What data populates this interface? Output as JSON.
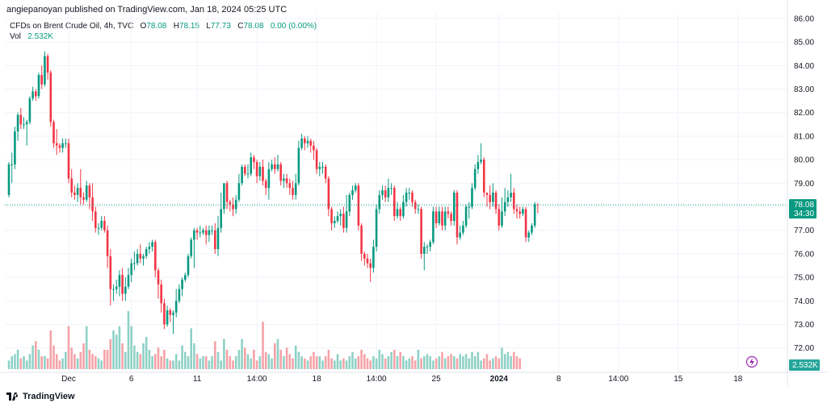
{
  "header": {
    "published": "angiepanoyan published on TradingView.com, Jan 18, 2024 05:25 UTC"
  },
  "legend": {
    "symbol": "CFDs on Brent Crude Oil, 4h, TVC",
    "o_label": "O",
    "o": "78.08",
    "h_label": "H",
    "h": "78.15",
    "l_label": "L",
    "l": "77.73",
    "c_label": "C",
    "c": "78.08",
    "change": "0.00 (0.00%)",
    "vol_label": "Vol",
    "vol": "2.532K"
  },
  "price_badge": {
    "price": "78.08",
    "countdown": "34:30",
    "color": "#089981"
  },
  "volume_badge": {
    "value": "2.532K",
    "color": "#26a69a"
  },
  "brand": {
    "name": "TradingView"
  },
  "colors": {
    "up": "#089981",
    "down": "#f23645",
    "vol_up": "#8fd1c6",
    "vol_down": "#f5a3a8",
    "grid": "#f0f3fa"
  },
  "chart_data": {
    "type": "candlestick",
    "y_ticks": [
      "72.00",
      "73.00",
      "74.00",
      "75.00",
      "76.00",
      "77.00",
      "78.00",
      "79.00",
      "80.00",
      "81.00",
      "82.00",
      "83.00",
      "84.00",
      "85.00",
      "86.00"
    ],
    "ylim": [
      71.1,
      86.1
    ],
    "x_ticks": [
      "Dec",
      "6",
      "11",
      "14:00",
      "18",
      "14:00",
      "25",
      "2024",
      "8",
      "14:00",
      "15",
      "18"
    ],
    "last_price": 78.08,
    "candles": [
      [
        78.5,
        79.8,
        78.4,
        79.9
      ],
      [
        79.8,
        79.8,
        79.0,
        80.3
      ],
      [
        79.8,
        81.2,
        79.6,
        81.4
      ],
      [
        81.2,
        81.9,
        80.8,
        82.0
      ],
      [
        81.9,
        81.5,
        81.3,
        82.2
      ],
      [
        81.5,
        81.5,
        81.3,
        81.8
      ],
      [
        81.5,
        81.6,
        80.6,
        81.7
      ],
      [
        81.6,
        82.6,
        81.5,
        82.7
      ],
      [
        82.6,
        82.9,
        82.5,
        83.1
      ],
      [
        82.9,
        82.7,
        82.5,
        83.0
      ],
      [
        82.7,
        83.6,
        82.6,
        83.7
      ],
      [
        83.6,
        83.2,
        83.0,
        84.0
      ],
      [
        83.2,
        84.4,
        83.1,
        84.6
      ],
      [
        84.4,
        83.7,
        83.4,
        84.5
      ],
      [
        83.7,
        81.6,
        81.4,
        83.8
      ],
      [
        81.6,
        80.7,
        80.5,
        81.7
      ],
      [
        80.7,
        80.6,
        80.2,
        81.3
      ],
      [
        80.6,
        80.5,
        80.3,
        80.7
      ],
      [
        80.5,
        80.7,
        80.3,
        80.9
      ],
      [
        80.7,
        80.7,
        80.5,
        80.9
      ],
      [
        80.7,
        79.2,
        79.0,
        80.9
      ],
      [
        79.2,
        78.6,
        78.4,
        79.6
      ],
      [
        78.6,
        78.5,
        78.3,
        78.9
      ],
      [
        78.5,
        78.8,
        78.2,
        79.0
      ],
      [
        78.8,
        78.4,
        78.1,
        79.6
      ],
      [
        78.4,
        78.3,
        78.1,
        78.6
      ],
      [
        78.3,
        78.9,
        78.2,
        79.1
      ],
      [
        78.9,
        78.4,
        77.9,
        79.0
      ],
      [
        78.4,
        77.8,
        77.4,
        79.0
      ],
      [
        77.8,
        77.1,
        76.9,
        78.0
      ],
      [
        77.1,
        77.1,
        76.8,
        77.3
      ],
      [
        77.1,
        77.4,
        77.0,
        77.6
      ],
      [
        77.4,
        77.0,
        76.9,
        77.6
      ],
      [
        77.0,
        75.9,
        75.4,
        77.2
      ],
      [
        75.9,
        74.5,
        73.8,
        76.2
      ],
      [
        74.5,
        74.5,
        74.0,
        74.7
      ],
      [
        74.5,
        74.6,
        74.3,
        74.9
      ],
      [
        74.6,
        75.1,
        74.2,
        75.3
      ],
      [
        75.1,
        74.3,
        74.0,
        75.4
      ],
      [
        74.3,
        74.6,
        74.0,
        75.0
      ],
      [
        74.6,
        75.1,
        74.5,
        75.4
      ],
      [
        75.1,
        75.6,
        74.8,
        75.8
      ],
      [
        75.6,
        75.6,
        75.3,
        76.1
      ],
      [
        75.6,
        76.0,
        75.5,
        76.2
      ],
      [
        76.0,
        75.8,
        75.6,
        76.4
      ],
      [
        75.8,
        75.9,
        75.5,
        76.0
      ],
      [
        75.9,
        76.2,
        75.8,
        76.3
      ],
      [
        76.2,
        76.3,
        76.0,
        76.5
      ],
      [
        76.3,
        76.5,
        76.1,
        76.6
      ],
      [
        76.5,
        75.3,
        75.0,
        76.6
      ],
      [
        75.3,
        74.7,
        74.1,
        75.4
      ],
      [
        74.7,
        73.9,
        73.5,
        74.9
      ],
      [
        73.9,
        73.0,
        72.8,
        74.1
      ],
      [
        73.0,
        73.6,
        72.9,
        73.8
      ],
      [
        73.6,
        73.4,
        73.1,
        73.7
      ],
      [
        73.4,
        73.5,
        72.6,
        73.6
      ],
      [
        73.5,
        74.0,
        73.3,
        74.5
      ],
      [
        74.0,
        74.5,
        73.9,
        74.7
      ],
      [
        74.5,
        74.9,
        74.2,
        75.0
      ],
      [
        74.9,
        75.1,
        74.8,
        75.2
      ],
      [
        75.1,
        75.9,
        75.0,
        76.0
      ],
      [
        75.9,
        76.6,
        75.8,
        76.7
      ],
      [
        76.6,
        77.0,
        75.4,
        77.1
      ],
      [
        77.0,
        76.9,
        76.6,
        77.1
      ],
      [
        76.9,
        76.9,
        76.7,
        77.2
      ],
      [
        76.9,
        77.0,
        76.8,
        77.1
      ],
      [
        77.0,
        76.8,
        76.4,
        77.2
      ],
      [
        76.8,
        77.0,
        76.5,
        77.2
      ],
      [
        77.0,
        77.0,
        76.8,
        77.2
      ],
      [
        77.0,
        76.2,
        76.0,
        77.3
      ],
      [
        76.2,
        77.1,
        75.9,
        77.6
      ],
      [
        77.1,
        77.9,
        76.9,
        78.6
      ],
      [
        77.9,
        79.0,
        77.7,
        79.0
      ],
      [
        79.0,
        78.2,
        77.9,
        79.1
      ],
      [
        78.2,
        78.1,
        77.8,
        78.3
      ],
      [
        78.1,
        77.9,
        77.6,
        78.4
      ],
      [
        77.9,
        78.3,
        77.7,
        78.5
      ],
      [
        78.3,
        79.0,
        78.2,
        79.4
      ],
      [
        79.0,
        79.7,
        78.9,
        79.8
      ],
      [
        79.7,
        79.4,
        79.3,
        79.8
      ],
      [
        79.4,
        79.4,
        79.2,
        79.8
      ],
      [
        79.4,
        80.1,
        79.3,
        80.3
      ],
      [
        80.1,
        79.9,
        79.6,
        80.2
      ],
      [
        79.9,
        79.3,
        79.0,
        80.0
      ],
      [
        79.3,
        79.7,
        79.1,
        79.9
      ],
      [
        79.7,
        79.1,
        78.9,
        80.0
      ],
      [
        79.1,
        78.8,
        78.5,
        79.2
      ],
      [
        78.8,
        79.6,
        78.3,
        79.9
      ],
      [
        79.6,
        79.8,
        79.5,
        80.0
      ],
      [
        79.8,
        79.6,
        79.4,
        80.1
      ],
      [
        79.6,
        79.8,
        79.5,
        80.2
      ],
      [
        79.8,
        79.1,
        78.9,
        79.9
      ],
      [
        79.1,
        79.2,
        78.8,
        79.4
      ],
      [
        79.2,
        79.0,
        78.8,
        79.4
      ],
      [
        79.0,
        78.8,
        78.5,
        79.2
      ],
      [
        78.8,
        78.5,
        78.3,
        79.1
      ],
      [
        78.5,
        79.0,
        78.3,
        79.4
      ],
      [
        79.0,
        80.5,
        78.9,
        80.8
      ],
      [
        80.5,
        80.9,
        80.4,
        81.1
      ],
      [
        80.9,
        80.7,
        80.4,
        81.0
      ],
      [
        80.7,
        80.8,
        80.5,
        81.0
      ],
      [
        80.8,
        80.6,
        80.3,
        80.9
      ],
      [
        80.6,
        80.4,
        80.0,
        80.8
      ],
      [
        80.4,
        79.6,
        79.4,
        80.5
      ],
      [
        79.6,
        79.7,
        79.3,
        79.9
      ],
      [
        79.7,
        79.7,
        79.4,
        79.9
      ],
      [
        79.7,
        79.2,
        79.0,
        79.8
      ],
      [
        79.2,
        77.9,
        77.6,
        79.3
      ],
      [
        77.9,
        77.3,
        77.0,
        78.0
      ],
      [
        77.3,
        77.4,
        77.1,
        77.6
      ],
      [
        77.4,
        77.6,
        77.3,
        77.8
      ],
      [
        77.6,
        77.7,
        77.2,
        77.9
      ],
      [
        77.7,
        77.1,
        76.9,
        78.0
      ],
      [
        77.1,
        77.8,
        76.9,
        78.5
      ],
      [
        77.8,
        78.5,
        77.6,
        78.6
      ],
      [
        78.5,
        78.7,
        78.3,
        78.9
      ],
      [
        78.7,
        78.9,
        78.6,
        79.0
      ],
      [
        78.9,
        77.2,
        77.0,
        79.0
      ],
      [
        77.2,
        76.0,
        75.7,
        77.3
      ],
      [
        76.0,
        75.8,
        75.5,
        76.1
      ],
      [
        75.8,
        75.6,
        75.4,
        76.0
      ],
      [
        75.6,
        75.4,
        74.8,
        75.8
      ],
      [
        75.4,
        76.3,
        75.2,
        76.6
      ],
      [
        76.3,
        77.9,
        76.1,
        78.1
      ],
      [
        77.9,
        78.5,
        77.7,
        78.7
      ],
      [
        78.5,
        78.7,
        78.3,
        78.9
      ],
      [
        78.7,
        78.4,
        78.2,
        78.9
      ],
      [
        78.4,
        78.8,
        78.2,
        79.2
      ],
      [
        78.8,
        78.8,
        78.5,
        79.0
      ],
      [
        78.8,
        77.6,
        77.4,
        78.9
      ],
      [
        77.6,
        77.9,
        77.5,
        78.2
      ],
      [
        77.9,
        77.6,
        77.4,
        78.0
      ],
      [
        77.6,
        78.2,
        77.5,
        78.5
      ],
      [
        78.2,
        78.6,
        78.0,
        78.8
      ],
      [
        78.6,
        78.6,
        78.3,
        78.8
      ],
      [
        78.6,
        78.2,
        78.0,
        78.7
      ],
      [
        78.2,
        77.9,
        77.7,
        78.3
      ],
      [
        77.9,
        77.9,
        77.7,
        78.1
      ],
      [
        77.9,
        76.0,
        75.8,
        78.0
      ],
      [
        76.0,
        76.3,
        75.3,
        76.5
      ],
      [
        76.3,
        76.3,
        76.0,
        76.4
      ],
      [
        76.3,
        76.5,
        76.1,
        76.6
      ],
      [
        76.5,
        77.8,
        76.4,
        78.0
      ],
      [
        77.8,
        77.3,
        77.1,
        78.0
      ],
      [
        77.3,
        77.8,
        77.2,
        78.0
      ],
      [
        77.8,
        77.2,
        77.0,
        78.0
      ],
      [
        77.2,
        77.8,
        77.0,
        78.0
      ],
      [
        77.8,
        77.7,
        77.5,
        78.0
      ],
      [
        77.7,
        77.4,
        77.2,
        77.8
      ],
      [
        77.4,
        78.6,
        77.2,
        78.7
      ],
      [
        78.6,
        76.7,
        76.4,
        78.7
      ],
      [
        76.7,
        76.9,
        76.6,
        77.2
      ],
      [
        76.9,
        77.2,
        76.8,
        77.4
      ],
      [
        77.2,
        78.0,
        77.1,
        78.1
      ],
      [
        78.0,
        78.0,
        77.5,
        78.2
      ],
      [
        78.0,
        78.8,
        77.9,
        79.0
      ],
      [
        78.8,
        79.6,
        78.7,
        79.8
      ],
      [
        79.6,
        79.9,
        79.4,
        80.2
      ],
      [
        79.9,
        80.0,
        79.8,
        80.7
      ],
      [
        80.0,
        78.6,
        78.4,
        80.1
      ],
      [
        78.6,
        78.5,
        78.0,
        78.6
      ],
      [
        78.5,
        78.2,
        77.9,
        78.9
      ],
      [
        78.2,
        78.6,
        78.0,
        79.0
      ],
      [
        78.6,
        77.9,
        77.7,
        78.7
      ],
      [
        77.9,
        77.2,
        77.0,
        78.1
      ],
      [
        77.2,
        77.8,
        77.1,
        78.4
      ],
      [
        77.8,
        78.2,
        77.6,
        78.8
      ],
      [
        78.2,
        78.4,
        78.0,
        78.7
      ],
      [
        78.4,
        78.6,
        78.2,
        79.4
      ],
      [
        78.6,
        77.9,
        77.7,
        78.8
      ],
      [
        77.9,
        77.8,
        77.5,
        78.1
      ],
      [
        77.8,
        77.7,
        77.5,
        78.0
      ],
      [
        77.7,
        77.9,
        77.6,
        78.0
      ],
      [
        77.9,
        76.7,
        76.5,
        78.0
      ],
      [
        76.7,
        76.9,
        76.5,
        77.0
      ],
      [
        76.9,
        77.2,
        76.8,
        77.3
      ],
      [
        77.2,
        78.1,
        77.1,
        78.2
      ],
      [
        78.1,
        78.08,
        77.73,
        78.15
      ]
    ],
    "volumes": [
      0.2,
      0.3,
      0.35,
      0.45,
      0.25,
      0.3,
      0.2,
      0.35,
      0.55,
      0.65,
      0.45,
      0.3,
      0.3,
      0.25,
      0.9,
      0.55,
      0.35,
      0.2,
      0.25,
      0.4,
      1.0,
      0.5,
      0.35,
      0.25,
      0.4,
      0.6,
      1.0,
      0.45,
      0.35,
      0.3,
      0.25,
      0.2,
      0.45,
      0.45,
      0.7,
      0.9,
      0.8,
      1.0,
      0.6,
      0.4,
      1.35,
      1.0,
      0.55,
      0.4,
      0.35,
      0.6,
      0.75,
      0.45,
      0.3,
      0.35,
      0.5,
      0.3,
      0.45,
      0.25,
      0.2,
      0.2,
      0.35,
      0.2,
      0.55,
      0.4,
      0.3,
      0.95,
      0.6,
      0.35,
      0.25,
      0.3,
      0.3,
      0.2,
      0.3,
      0.65,
      0.4,
      0.2,
      0.7,
      0.45,
      0.3,
      0.2,
      0.3,
      0.45,
      0.7,
      0.5,
      0.35,
      0.25,
      0.45,
      0.2,
      0.3,
      1.1,
      0.4,
      0.35,
      0.25,
      0.6,
      0.7,
      0.45,
      0.3,
      0.5,
      0.35,
      0.25,
      0.55,
      0.4,
      0.3,
      0.25,
      0.2,
      0.3,
      0.4,
      0.3,
      0.3,
      0.2,
      0.3,
      0.45,
      0.25,
      0.2,
      0.35,
      0.2,
      0.25,
      0.2,
      0.3,
      0.4,
      0.25,
      0.3,
      0.45,
      0.35,
      0.25,
      0.2,
      0.3,
      0.25,
      0.45,
      0.35,
      0.25,
      0.3,
      0.4,
      0.45,
      0.3,
      0.4,
      0.3,
      0.2,
      0.25,
      0.3,
      0.2,
      0.45,
      0.25,
      0.3,
      0.35,
      0.3,
      0.2,
      0.25,
      0.3,
      0.4,
      0.25,
      0.3,
      0.35,
      0.3,
      0.25,
      0.35,
      0.3,
      0.35,
      0.25,
      0.4,
      0.3,
      0.4,
      0.2,
      0.25,
      0.35,
      0.2,
      0.25,
      0.3,
      0.25,
      0.5,
      0.35,
      0.4,
      0.3,
      0.4,
      0.3,
      0.25
    ]
  }
}
